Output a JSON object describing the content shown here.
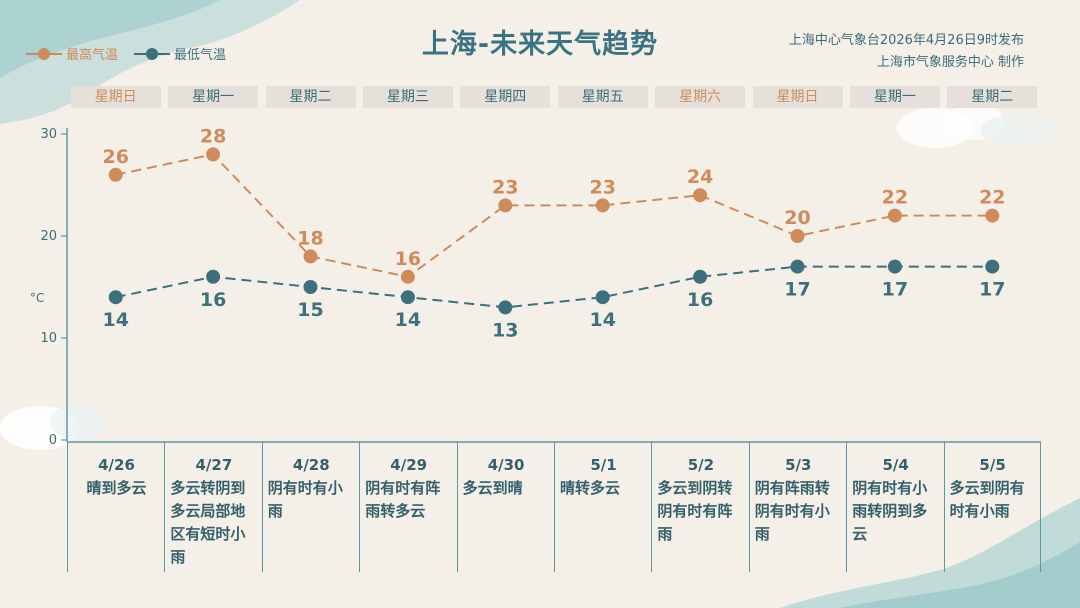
{
  "title": "上海-未来天气趋势",
  "publisher": {
    "line1": "上海中心气象台2026年4月26日9时发布",
    "line2": "上海市气象服务中心 制作"
  },
  "legend": {
    "max": "最高气温",
    "min": "最低气温"
  },
  "colors": {
    "max": "#d08b5b",
    "min": "#3e6f7c",
    "axis": "#5e97a4",
    "weekend": "#d08b5b"
  },
  "weekdays": [
    {
      "label": "星期日",
      "weekend": true
    },
    {
      "label": "星期一",
      "weekend": false
    },
    {
      "label": "星期二",
      "weekend": false
    },
    {
      "label": "星期三",
      "weekend": false
    },
    {
      "label": "星期四",
      "weekend": false
    },
    {
      "label": "星期五",
      "weekend": false
    },
    {
      "label": "星期六",
      "weekend": true
    },
    {
      "label": "星期日",
      "weekend": true
    },
    {
      "label": "星期一",
      "weekend": false
    },
    {
      "label": "星期二",
      "weekend": false
    }
  ],
  "days": [
    {
      "date": "4/26",
      "weather": "晴到多云"
    },
    {
      "date": "4/27",
      "weather": "多云转阴到多云局部地区有短时小雨"
    },
    {
      "date": "4/28",
      "weather": "阴有时有小雨"
    },
    {
      "date": "4/29",
      "weather": "阴有时有阵雨转多云"
    },
    {
      "date": "4/30",
      "weather": "多云到晴"
    },
    {
      "date": "5/1",
      "weather": "晴转多云"
    },
    {
      "date": "5/2",
      "weather": "多云到阴转阴有时有阵雨"
    },
    {
      "date": "5/3",
      "weather": "阴有阵雨转阴有时有小雨"
    },
    {
      "date": "5/4",
      "weather": "阴有时有小雨转阴到多云"
    },
    {
      "date": "5/5",
      "weather": "多云到阴有时有小雨"
    }
  ],
  "chart_data": {
    "type": "line",
    "categories": [
      "4/26",
      "4/27",
      "4/28",
      "4/29",
      "4/30",
      "5/1",
      "5/2",
      "5/3",
      "5/4",
      "5/5"
    ],
    "series": [
      {
        "name": "最高气温",
        "values": [
          26,
          28,
          18,
          16,
          23,
          23,
          24,
          20,
          22,
          22
        ]
      },
      {
        "name": "最低气温",
        "values": [
          14,
          16,
          15,
          14,
          13,
          14,
          16,
          17,
          17,
          17
        ]
      }
    ],
    "ylabel": "°C",
    "yticks": [
      0,
      10,
      20,
      30
    ],
    "ylim": [
      0,
      30
    ],
    "grid": false,
    "legend_position": "top-left",
    "line_style": "dashed"
  }
}
